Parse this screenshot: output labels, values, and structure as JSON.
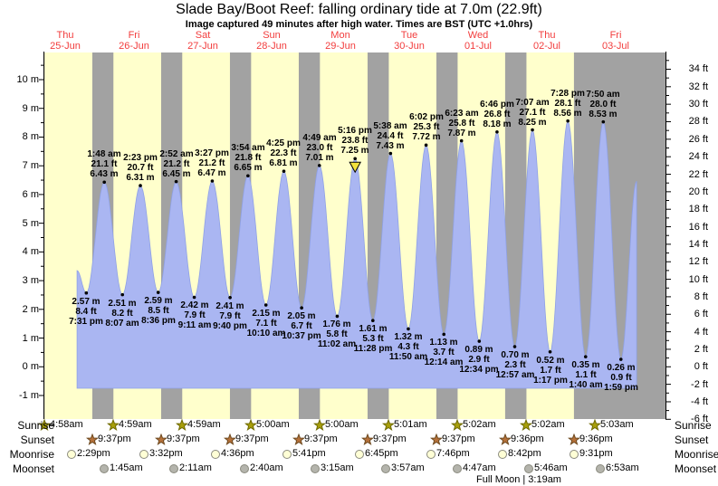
{
  "title": "Slade Bay/Boot Reef: falling  ordinary tide at 7.0m (22.9ft)",
  "subtitle": "Image captured 49 minutes after high water. Times are BST (UTC +1.0hrs)",
  "chart_data": {
    "type": "area",
    "title": "Slade Bay/Boot Reef: falling  ordinary tide at 7.0m (22.9ft)",
    "subtitle": "Image captured 49 minutes after high water. Times are BST (UTC +1.0hrs)",
    "days": [
      {
        "name": "Thu",
        "date": "25-Jun"
      },
      {
        "name": "Fri",
        "date": "26-Jun"
      },
      {
        "name": "Sat",
        "date": "27-Jun"
      },
      {
        "name": "Sun",
        "date": "28-Jun"
      },
      {
        "name": "Mon",
        "date": "29-Jun"
      },
      {
        "name": "Tue",
        "date": "30-Jun"
      },
      {
        "name": "Wed",
        "date": "01-Jul"
      },
      {
        "name": "Thu",
        "date": "02-Jul"
      },
      {
        "name": "Fri",
        "date": "03-Jul"
      }
    ],
    "axes": {
      "left": {
        "unit": "m",
        "min": -1,
        "max": 10,
        "label_step": 1
      },
      "right": {
        "unit": "ft",
        "min": -6,
        "max": 34,
        "label_step": 2
      }
    },
    "tide_events": [
      {
        "kind": "low",
        "day": 0,
        "t": 19.52,
        "time": "7:31 pm",
        "m": "2.57",
        "ft": "8.4"
      },
      {
        "kind": "high",
        "day": 1,
        "t": 1.8,
        "time": "1:48 am",
        "m": "6.43",
        "ft": "21.1"
      },
      {
        "kind": "low",
        "day": 1,
        "t": 8.12,
        "time": "8:07 am",
        "m": "2.51",
        "ft": "8.2"
      },
      {
        "kind": "high",
        "day": 1,
        "t": 14.38,
        "time": "2:23 pm",
        "m": "6.31",
        "ft": "20.7"
      },
      {
        "kind": "low",
        "day": 1,
        "t": 20.6,
        "time": "8:36 pm",
        "m": "2.59",
        "ft": "8.5"
      },
      {
        "kind": "high",
        "day": 2,
        "t": 2.87,
        "time": "2:52 am",
        "m": "6.45",
        "ft": "21.2"
      },
      {
        "kind": "low",
        "day": 2,
        "t": 9.18,
        "time": "9:11 am",
        "m": "2.42",
        "ft": "7.9"
      },
      {
        "kind": "high",
        "day": 2,
        "t": 15.45,
        "time": "3:27 pm",
        "m": "6.47",
        "ft": "21.2"
      },
      {
        "kind": "low",
        "day": 2,
        "t": 21.67,
        "time": "9:40 pm",
        "m": "2.41",
        "ft": "7.9"
      },
      {
        "kind": "high",
        "day": 3,
        "t": 3.9,
        "time": "3:54 am",
        "m": "6.65",
        "ft": "21.8"
      },
      {
        "kind": "low",
        "day": 3,
        "t": 10.17,
        "time": "10:10 am",
        "m": "2.15",
        "ft": "7.1"
      },
      {
        "kind": "high",
        "day": 3,
        "t": 16.42,
        "time": "4:25 pm",
        "m": "6.81",
        "ft": "22.3"
      },
      {
        "kind": "low",
        "day": 3,
        "t": 22.62,
        "time": "10:37 pm",
        "m": "2.05",
        "ft": "6.7"
      },
      {
        "kind": "high",
        "day": 4,
        "t": 4.82,
        "time": "4:49 am",
        "m": "7.01",
        "ft": "23.0"
      },
      {
        "kind": "low",
        "day": 4,
        "t": 11.03,
        "time": "11:02 am",
        "m": "1.76",
        "ft": "5.8"
      },
      {
        "kind": "high",
        "day": 4,
        "t": 17.27,
        "time": "5:16 pm",
        "m": "7.25",
        "ft": "23.8",
        "current": true
      },
      {
        "kind": "low",
        "day": 4,
        "t": 23.47,
        "time": "11:28 pm",
        "m": "1.61",
        "ft": "5.3"
      },
      {
        "kind": "high",
        "day": 5,
        "t": 5.63,
        "time": "5:38 am",
        "m": "7.43",
        "ft": "24.4"
      },
      {
        "kind": "low",
        "day": 5,
        "t": 11.83,
        "time": "11:50 am",
        "m": "1.32",
        "ft": "4.3"
      },
      {
        "kind": "high",
        "day": 5,
        "t": 18.03,
        "time": "6:02 pm",
        "m": "7.72",
        "ft": "25.3"
      },
      {
        "kind": "low",
        "day": 6,
        "t": 0.23,
        "time": "12:14 am",
        "m": "1.13",
        "ft": "3.7"
      },
      {
        "kind": "high",
        "day": 6,
        "t": 6.38,
        "time": "6:23 am",
        "m": "7.87",
        "ft": "25.8"
      },
      {
        "kind": "low",
        "day": 6,
        "t": 12.57,
        "time": "12:34 pm",
        "m": "0.89",
        "ft": "2.9"
      },
      {
        "kind": "high",
        "day": 6,
        "t": 18.77,
        "time": "6:46 pm",
        "m": "8.18",
        "ft": "26.8"
      },
      {
        "kind": "low",
        "day": 7,
        "t": 0.95,
        "time": "12:57 am",
        "m": "0.70",
        "ft": "2.3"
      },
      {
        "kind": "high",
        "day": 7,
        "t": 7.12,
        "time": "7:07 am",
        "m": "8.25",
        "ft": "27.1"
      },
      {
        "kind": "low",
        "day": 7,
        "t": 13.28,
        "time": "1:17 pm",
        "m": "0.52",
        "ft": "1.7"
      },
      {
        "kind": "high",
        "day": 7,
        "t": 19.47,
        "time": "7:28 pm",
        "m": "8.56",
        "ft": "28.1"
      },
      {
        "kind": "low",
        "day": 8,
        "t": 1.67,
        "time": "1:40 am",
        "m": "0.35",
        "ft": "1.1"
      },
      {
        "kind": "high",
        "day": 8,
        "t": 7.83,
        "time": "7:50 am",
        "m": "8.53",
        "ft": "28.0"
      },
      {
        "kind": "low",
        "day": 8,
        "t": 13.98,
        "time": "1:59 pm",
        "m": "0.26",
        "ft": "0.9"
      }
    ],
    "data_window": {
      "start": {
        "day": 0,
        "t": 16.3,
        "m": 3.35
      },
      "end": {
        "day": 8,
        "t": 19.45,
        "m": 6.46
      }
    },
    "sun_moon": {
      "rows": [
        {
          "id": "sunrise",
          "label": "Sunrise",
          "entries": [
            {
              "day": 0,
              "t": 4.97,
              "time": "4:58am"
            },
            {
              "day": 1,
              "t": 4.98,
              "time": "4:59am"
            },
            {
              "day": 2,
              "t": 4.98,
              "time": "4:59am"
            },
            {
              "day": 3,
              "t": 5.0,
              "time": "5:00am"
            },
            {
              "day": 4,
              "t": 5.0,
              "time": "5:00am"
            },
            {
              "day": 5,
              "t": 5.02,
              "time": "5:01am"
            },
            {
              "day": 6,
              "t": 5.03,
              "time": "5:02am"
            },
            {
              "day": 7,
              "t": 5.03,
              "time": "5:02am"
            },
            {
              "day": 8,
              "t": 5.05,
              "time": "5:03am"
            }
          ]
        },
        {
          "id": "sunset",
          "label": "Sunset",
          "entries": [
            {
              "day": 0,
              "t": 21.62,
              "time": "9:37pm"
            },
            {
              "day": 1,
              "t": 21.62,
              "time": "9:37pm"
            },
            {
              "day": 2,
              "t": 21.62,
              "time": "9:37pm"
            },
            {
              "day": 3,
              "t": 21.62,
              "time": "9:37pm"
            },
            {
              "day": 4,
              "t": 21.62,
              "time": "9:37pm"
            },
            {
              "day": 5,
              "t": 21.62,
              "time": "9:37pm"
            },
            {
              "day": 6,
              "t": 21.6,
              "time": "9:36pm"
            },
            {
              "day": 7,
              "t": 21.6,
              "time": "9:36pm"
            }
          ]
        },
        {
          "id": "moonrise",
          "label": "Moonrise",
          "entries": [
            {
              "day": 0,
              "t": 14.48,
              "time": "2:29pm"
            },
            {
              "day": 1,
              "t": 15.53,
              "time": "3:32pm"
            },
            {
              "day": 2,
              "t": 16.6,
              "time": "4:36pm"
            },
            {
              "day": 3,
              "t": 17.68,
              "time": "5:41pm"
            },
            {
              "day": 4,
              "t": 18.75,
              "time": "6:45pm"
            },
            {
              "day": 5,
              "t": 19.77,
              "time": "7:46pm"
            },
            {
              "day": 6,
              "t": 20.7,
              "time": "8:42pm"
            },
            {
              "day": 7,
              "t": 21.52,
              "time": "9:31pm"
            }
          ]
        },
        {
          "id": "moonset",
          "label": "Moonset",
          "entries": [
            {
              "day": 1,
              "t": 1.75,
              "time": "1:45am"
            },
            {
              "day": 2,
              "t": 2.18,
              "time": "2:11am"
            },
            {
              "day": 3,
              "t": 2.67,
              "time": "2:40am"
            },
            {
              "day": 4,
              "t": 3.25,
              "time": "3:15am"
            },
            {
              "day": 5,
              "t": 3.95,
              "time": "3:57am"
            },
            {
              "day": 6,
              "t": 4.78,
              "time": "4:47am"
            },
            {
              "day": 7,
              "t": 5.77,
              "time": "5:46am"
            },
            {
              "day": 8,
              "t": 6.88,
              "time": "6:53am"
            }
          ]
        }
      ],
      "full_moon": "Full Moon | 3:19am"
    },
    "colors": {
      "day_band": "#ffffcc",
      "night_band": "#a2a2a2",
      "tide_fill": "#aab6f2",
      "tide_edge": "#8fa1e6",
      "day_label": "#f23c3c",
      "current_marker": "#f2e23c",
      "sunrise_star": "#a89f0a",
      "sunrise_star_edge": "#6f6a00",
      "sunset_star": "#b5713a",
      "sunset_star_edge": "#6e4category:#000",
      "moonrise_circle": "#ffffd6",
      "moonset_circle": "#b4b4ac",
      "icon_edge": "#8a8a7e"
    }
  }
}
